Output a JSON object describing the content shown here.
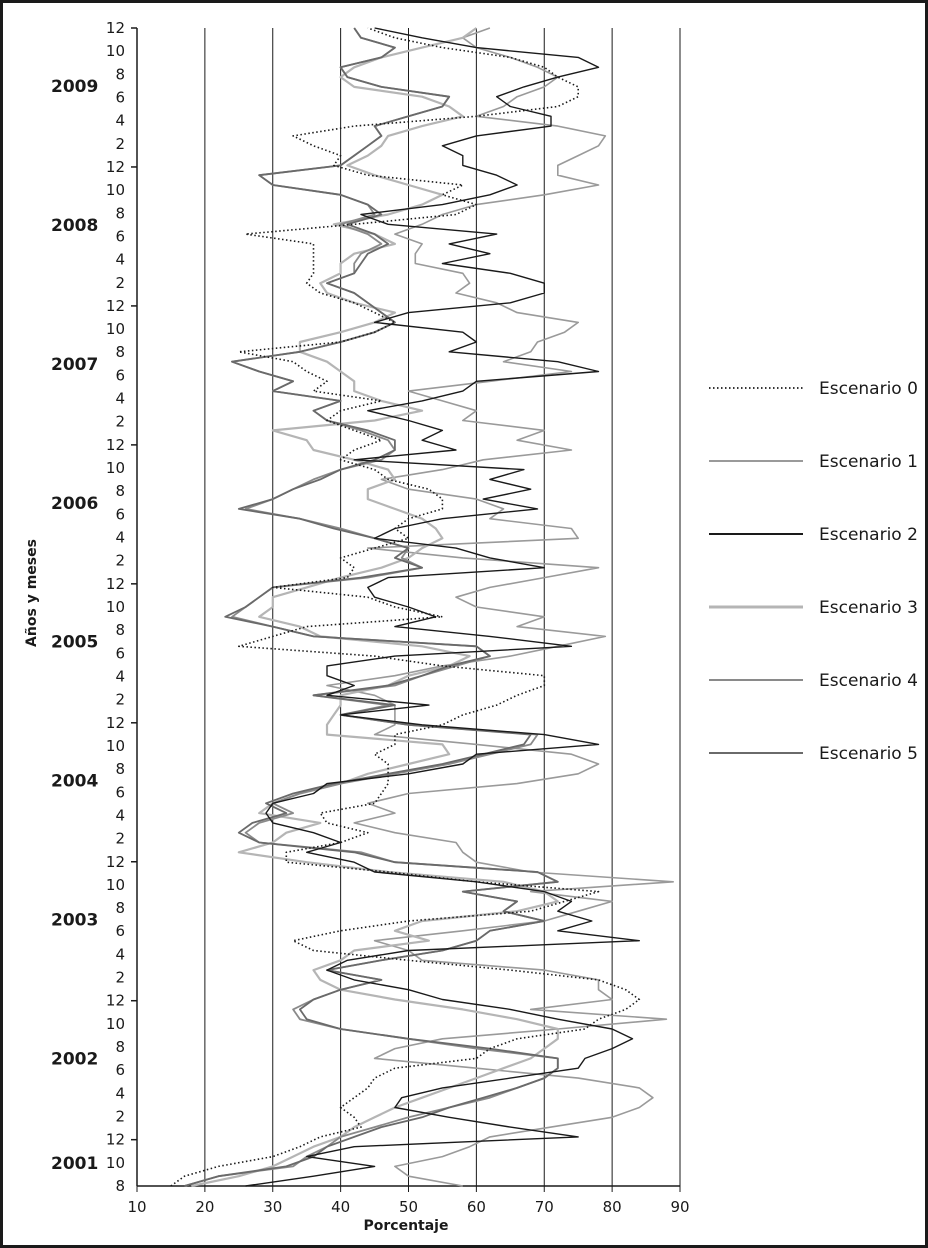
{
  "chart_data": {
    "type": "line",
    "orientation": "vertical (time on y-axis, values on x-axis)",
    "xlabel": "Porcentaje",
    "ylabel": "Años y meses",
    "xlim": [
      10,
      90
    ],
    "xticks": [
      "10",
      "20",
      "30",
      "40",
      "50",
      "60",
      "70",
      "80",
      "90"
    ],
    "ylim": [
      "2001-08",
      "2009-12"
    ],
    "grid": "vertical gridlines at each x tick",
    "legend_position": "right",
    "legend": [
      {
        "name": "Escenario 0",
        "color": "#1a1a1a",
        "style": "dotted"
      },
      {
        "name": "Escenario 1",
        "color": "#9a9a9a",
        "style": "solid"
      },
      {
        "name": "Escenario 2",
        "color": "#1a1a1a",
        "style": "solid"
      },
      {
        "name": "Escenario 3",
        "color": "#b5b5b5",
        "style": "solid"
      },
      {
        "name": "Escenario 4",
        "color": "#8a8a8a",
        "style": "solid"
      },
      {
        "name": "Escenario 5",
        "color": "#6a6a6a",
        "style": "solid"
      }
    ],
    "year_ticks": [
      {
        "year": "2001",
        "months": [
          {
            "label": "8",
            "month": 8
          },
          {
            "label": "10",
            "month": 10
          },
          {
            "label": "12",
            "month": 12
          }
        ]
      },
      {
        "year": "2002",
        "months": [
          {
            "label": "2",
            "month": 2
          },
          {
            "label": "4",
            "month": 4
          },
          {
            "label": "6",
            "month": 6
          },
          {
            "label": "8",
            "month": 8
          },
          {
            "label": "10",
            "month": 10
          },
          {
            "label": "12",
            "month": 12
          }
        ]
      },
      {
        "year": "2003",
        "months": [
          {
            "label": "2",
            "month": 2
          },
          {
            "label": "4",
            "month": 4
          },
          {
            "label": "6",
            "month": 6
          },
          {
            "label": "8",
            "month": 8
          },
          {
            "label": "10",
            "month": 10
          },
          {
            "label": "12",
            "month": 12
          }
        ]
      },
      {
        "year": "2004",
        "months": [
          {
            "label": "2",
            "month": 2
          },
          {
            "label": "4",
            "month": 4
          },
          {
            "label": "6",
            "month": 6
          },
          {
            "label": "8",
            "month": 8
          },
          {
            "label": "10",
            "month": 10
          },
          {
            "label": "12",
            "month": 12
          }
        ]
      },
      {
        "year": "2005",
        "months": [
          {
            "label": "2",
            "month": 2
          },
          {
            "label": "4",
            "month": 4
          },
          {
            "label": "6",
            "month": 6
          },
          {
            "label": "8",
            "month": 8
          },
          {
            "label": "10",
            "month": 10
          },
          {
            "label": "12",
            "month": 12
          }
        ]
      },
      {
        "year": "2006",
        "months": [
          {
            "label": "2",
            "month": 2
          },
          {
            "label": "4",
            "month": 4
          },
          {
            "label": "6",
            "month": 6
          },
          {
            "label": "8",
            "month": 8
          },
          {
            "label": "10",
            "month": 10
          },
          {
            "label": "12",
            "month": 12
          }
        ]
      },
      {
        "year": "2007",
        "months": [
          {
            "label": "2",
            "month": 2
          },
          {
            "label": "4",
            "month": 4
          },
          {
            "label": "6",
            "month": 6
          },
          {
            "label": "8",
            "month": 8
          },
          {
            "label": "10",
            "month": 10
          },
          {
            "label": "12",
            "month": 12
          }
        ]
      },
      {
        "year": "2008",
        "months": [
          {
            "label": "2",
            "month": 2
          },
          {
            "label": "4",
            "month": 4
          },
          {
            "label": "6",
            "month": 6
          },
          {
            "label": "8",
            "month": 8
          },
          {
            "label": "10",
            "month": 10
          },
          {
            "label": "12",
            "month": 12
          }
        ]
      },
      {
        "year": "2009",
        "months": [
          {
            "label": "2",
            "month": 2
          },
          {
            "label": "4",
            "month": 4
          },
          {
            "label": "6",
            "month": 6
          },
          {
            "label": "8",
            "month": 8
          },
          {
            "label": "10",
            "month": 10
          },
          {
            "label": "12",
            "month": 12
          }
        ]
      }
    ],
    "series": [
      {
        "name": "Escenario 0",
        "values": [
          15,
          17,
          22,
          30,
          34,
          37,
          43,
          42,
          40,
          42,
          44,
          45,
          48,
          60,
          62,
          66,
          76,
          78,
          82,
          84,
          82,
          78,
          65,
          50,
          36,
          33,
          40,
          50,
          68,
          73,
          78,
          60,
          47,
          32,
          32,
          40,
          44,
          38,
          37,
          45,
          46,
          47,
          47,
          47,
          45,
          48,
          48,
          55,
          58,
          63,
          66,
          70,
          70,
          55,
          45,
          25,
          30,
          35,
          55,
          48,
          44,
          30,
          41,
          42,
          40,
          45,
          50,
          48,
          50,
          55,
          55,
          53,
          47,
          45,
          40,
          42,
          46,
          42,
          38,
          40,
          46,
          36,
          38,
          35,
          33,
          25,
          40,
          45,
          48,
          45,
          42,
          37,
          35,
          36,
          36,
          36,
          36,
          26,
          42,
          57,
          60,
          55,
          58,
          44,
          39,
          40,
          36,
          33,
          42,
          60,
          72,
          75,
          75,
          72,
          70,
          65,
          55,
          48,
          44
        ]
      },
      {
        "name": "Escenario 1",
        "values": [
          58,
          50,
          48,
          55,
          59,
          62,
          71,
          80,
          84,
          86,
          84,
          75,
          60,
          45,
          48,
          55,
          72,
          88,
          68,
          80,
          78,
          78,
          70,
          52,
          50,
          45,
          58,
          70,
          75,
          80,
          68,
          89,
          68,
          60,
          58,
          57,
          48,
          42,
          48,
          44,
          50,
          66,
          75,
          78,
          74,
          60,
          45,
          48,
          48,
          48,
          45,
          38,
          48,
          55,
          65,
          72,
          79,
          66,
          70,
          60,
          57,
          62,
          70,
          78,
          58,
          44,
          75,
          74,
          62,
          64,
          60,
          50,
          46,
          55,
          61,
          74,
          66,
          70,
          58,
          60,
          55,
          50,
          62,
          74,
          64,
          68,
          69,
          73,
          75,
          66,
          63,
          57,
          59,
          58,
          51,
          51,
          52,
          48,
          52,
          55,
          60,
          70,
          78,
          72,
          72,
          75,
          78,
          79,
          72,
          60,
          64,
          66,
          70,
          72,
          69,
          65,
          60,
          58,
          62
        ]
      },
      {
        "name": "Escenario 2",
        "values": [
          26,
          36,
          45,
          35,
          42,
          75,
          65,
          56,
          48,
          49,
          55,
          65,
          75,
          76,
          80,
          83,
          80,
          72,
          65,
          55,
          50,
          42,
          38,
          41,
          50,
          84,
          72,
          77,
          72,
          74,
          70,
          60,
          45,
          42,
          35,
          40,
          36,
          30,
          29,
          30,
          36,
          38,
          50,
          58,
          60,
          78,
          70,
          52,
          40,
          53,
          38,
          42,
          38,
          38,
          48,
          74,
          62,
          48,
          54,
          50,
          45,
          44,
          47,
          70,
          62,
          57,
          45,
          48,
          55,
          69,
          61,
          68,
          62,
          67,
          42,
          57,
          52,
          55,
          50,
          44,
          52,
          58,
          60,
          78,
          72,
          56,
          60,
          58,
          45,
          50,
          65,
          70,
          70,
          65,
          55,
          62,
          56,
          63,
          47,
          43,
          55,
          62,
          66,
          63,
          58,
          58,
          55,
          60,
          71,
          71,
          65,
          63,
          67,
          72,
          78,
          75,
          60,
          52,
          45
        ]
      },
      {
        "name": "Escenario 3",
        "values": [
          18,
          25,
          30,
          33,
          36,
          40,
          42,
          45,
          48,
          52,
          56,
          60,
          64,
          68,
          70,
          72,
          72,
          66,
          58,
          48,
          40,
          37,
          36,
          40,
          42,
          53,
          48,
          52,
          66,
          72,
          70,
          64,
          47,
          35,
          25,
          30,
          32,
          37,
          28,
          30,
          34,
          40,
          44,
          50,
          56,
          55,
          38,
          38,
          39,
          40,
          40,
          47,
          50,
          56,
          59,
          52,
          37,
          34,
          28,
          30,
          30,
          35,
          40,
          46,
          50,
          52,
          55,
          54,
          52,
          48,
          44,
          44,
          48,
          47,
          42,
          36,
          35,
          30,
          45,
          52,
          46,
          42,
          42,
          40,
          38,
          34,
          34,
          40,
          45,
          48,
          42,
          38,
          37,
          40,
          40,
          42,
          48,
          45,
          39,
          47,
          52,
          55,
          50,
          45,
          41,
          44,
          46,
          47,
          52,
          58,
          56,
          52,
          42,
          40,
          42,
          46,
          52,
          58,
          60
        ]
      },
      {
        "name": "Escenario 4",
        "values": [
          17,
          22,
          33,
          35,
          38,
          40,
          45,
          50,
          56,
          62,
          66,
          70,
          72,
          72,
          60,
          50,
          40,
          34,
          33,
          36,
          40,
          46,
          38,
          46,
          55,
          60,
          62,
          70,
          64,
          66,
          58,
          72,
          69,
          48,
          43,
          28,
          26,
          28,
          33,
          30,
          34,
          40,
          48,
          56,
          62,
          68,
          69,
          50,
          40,
          47,
          36,
          48,
          52,
          57,
          62,
          60,
          36,
          30,
          24,
          26,
          28,
          30,
          44,
          52,
          49,
          50,
          45,
          40,
          34,
          26,
          30,
          33,
          36,
          40,
          46,
          48,
          47,
          43,
          38,
          36,
          40,
          30,
          33,
          28,
          24,
          34,
          40,
          45,
          48,
          46,
          44,
          42,
          38,
          42,
          42,
          43,
          46,
          44,
          40,
          45,
          44,
          40,
          30,
          28,
          40,
          42,
          44,
          46,
          45,
          50,
          55,
          56,
          46,
          41,
          40,
          46,
          48,
          43,
          42
        ]
      },
      {
        "name": "Escenario 5",
        "values": [
          17,
          22,
          32,
          36,
          38,
          42,
          46,
          52,
          56,
          61,
          66,
          70,
          72,
          72,
          62,
          50,
          40,
          35,
          34,
          36,
          40,
          46,
          38,
          46,
          55,
          60,
          62,
          70,
          64,
          66,
          58,
          72,
          69,
          48,
          42,
          28,
          25,
          27,
          32,
          29,
          33,
          39,
          47,
          55,
          61,
          67,
          68,
          50,
          40,
          48,
          36,
          47,
          52,
          56,
          62,
          60,
          36,
          30,
          23,
          26,
          28,
          30,
          43,
          52,
          48,
          50,
          45,
          39,
          34,
          25,
          30,
          33,
          37,
          40,
          45,
          48,
          48,
          44,
          38,
          36,
          40,
          30,
          33,
          28,
          24,
          34,
          40,
          45,
          48,
          46,
          44,
          42,
          38,
          42,
          43,
          44,
          47,
          45,
          41,
          46,
          44,
          40,
          30,
          28,
          40,
          42,
          44,
          46,
          45,
          50,
          55,
          56,
          46,
          41,
          40,
          46,
          48,
          43,
          42
        ]
      }
    ]
  }
}
